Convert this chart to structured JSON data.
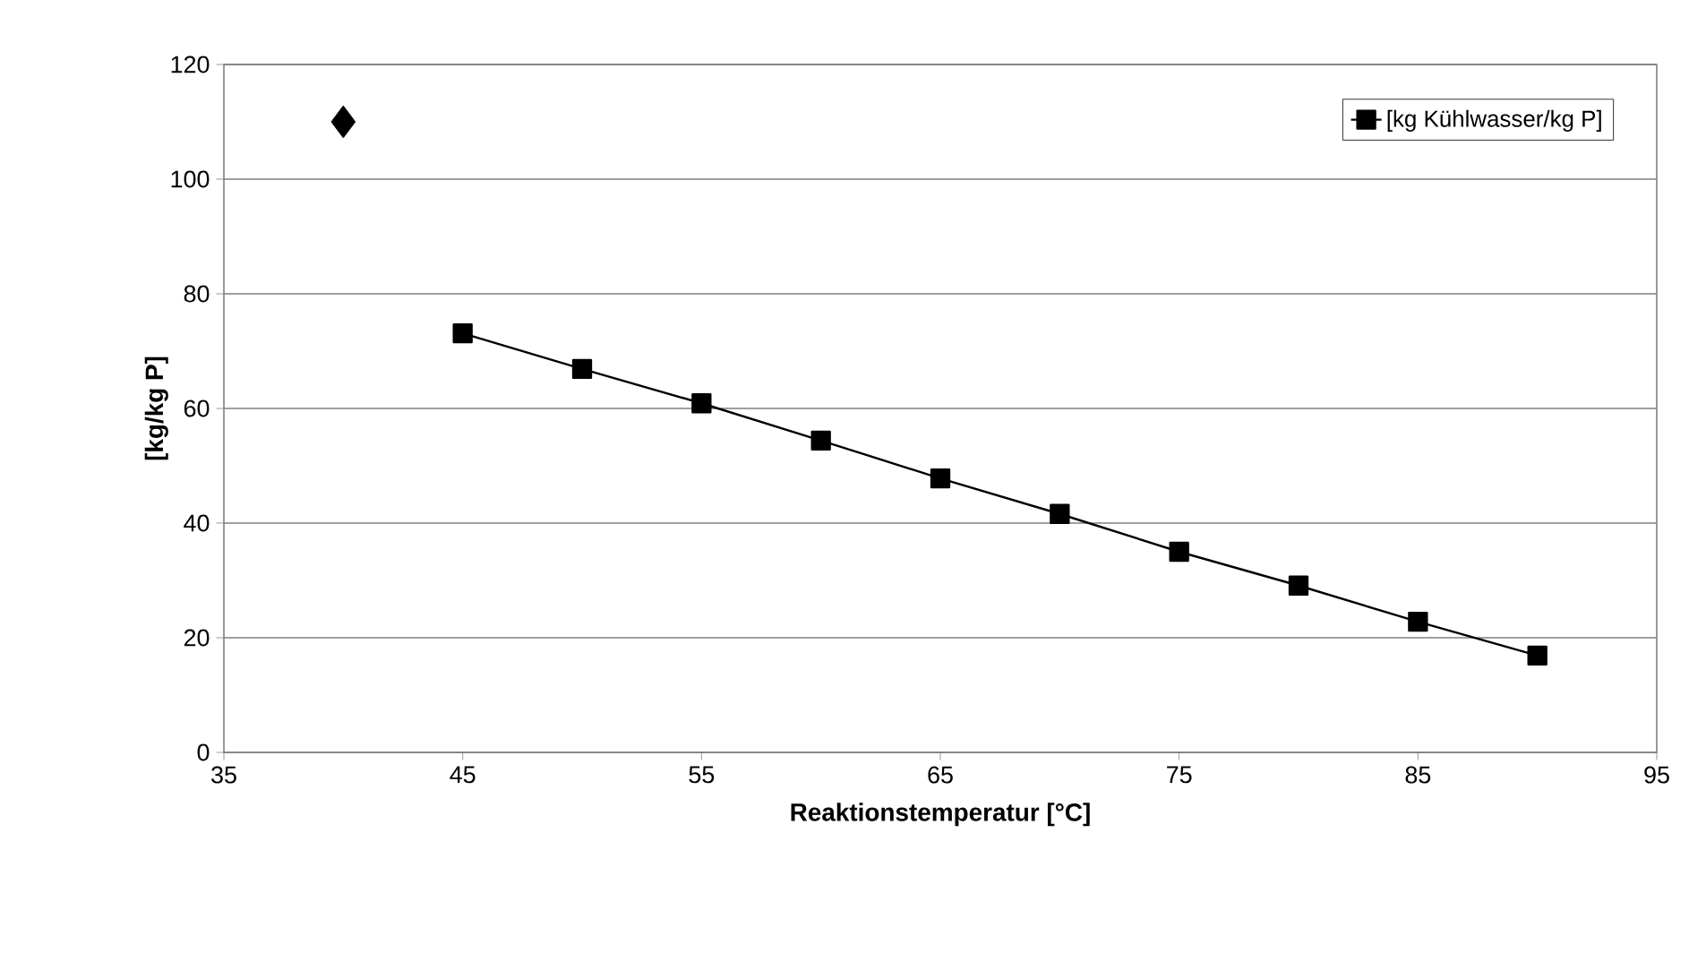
{
  "chart_data": {
    "type": "line",
    "xlabel": "Reaktionstemperatur [°C]",
    "ylabel": "[kg/kg P]",
    "xlim": [
      35,
      95
    ],
    "xticks": [
      35,
      45,
      55,
      65,
      75,
      85,
      95
    ],
    "ylim": [
      0,
      120
    ],
    "yticks": [
      0,
      20,
      40,
      60,
      80,
      100,
      120
    ],
    "grid": "y",
    "legend": "top right",
    "series": [
      {
        "name": "[kg Kühlwasser/kg P]",
        "color": "#000000",
        "marker": "square",
        "line_style": "solid",
        "x": [
          45,
          50,
          55,
          60,
          65,
          70,
          75,
          80,
          85,
          90
        ],
        "values": [
          73.1,
          66.9,
          60.9,
          54.4,
          47.8,
          41.6,
          35.0,
          29.1,
          22.8,
          16.9
        ]
      },
      {
        "type": "scatter",
        "color": "#000000",
        "marker": "diamond",
        "x": [
          40
        ],
        "values": [
          110
        ]
      }
    ]
  }
}
